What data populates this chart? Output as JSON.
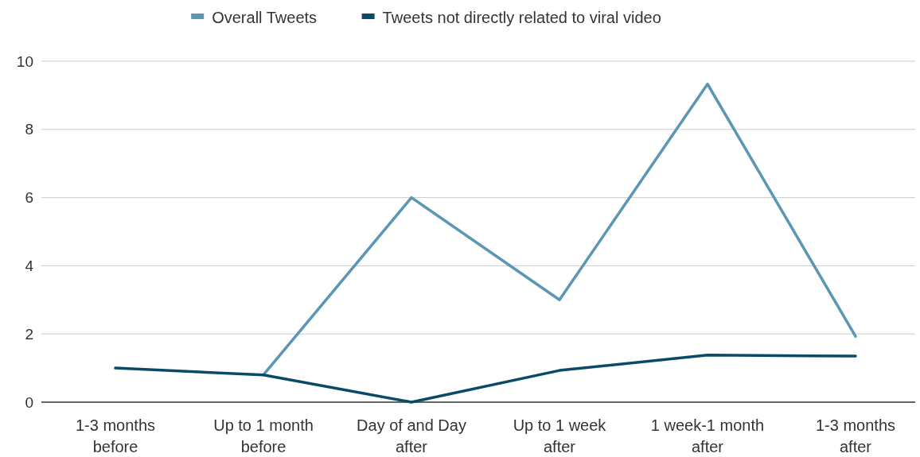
{
  "chart_data": {
    "type": "line",
    "categories": [
      "1-3 months before",
      "Up to 1 month before",
      "Day of and Day after",
      "Up to 1 week after",
      "1 week-1 month after",
      "1-3 months after"
    ],
    "series": [
      {
        "name": "Overall Tweets",
        "color": "#5b96b5",
        "values": [
          null,
          0.8,
          6,
          3,
          9.33,
          1.93
        ]
      },
      {
        "name": "Tweets not directly related to viral video",
        "color": "#0b4a66",
        "values": [
          1,
          0.8,
          0,
          0.93,
          1.38,
          1.35
        ]
      }
    ],
    "ylim": [
      0,
      10
    ],
    "yticks": [
      0,
      2,
      4,
      6,
      8,
      10
    ],
    "grid": "y",
    "legend": "top",
    "marker": "none",
    "line_style": "solid"
  }
}
